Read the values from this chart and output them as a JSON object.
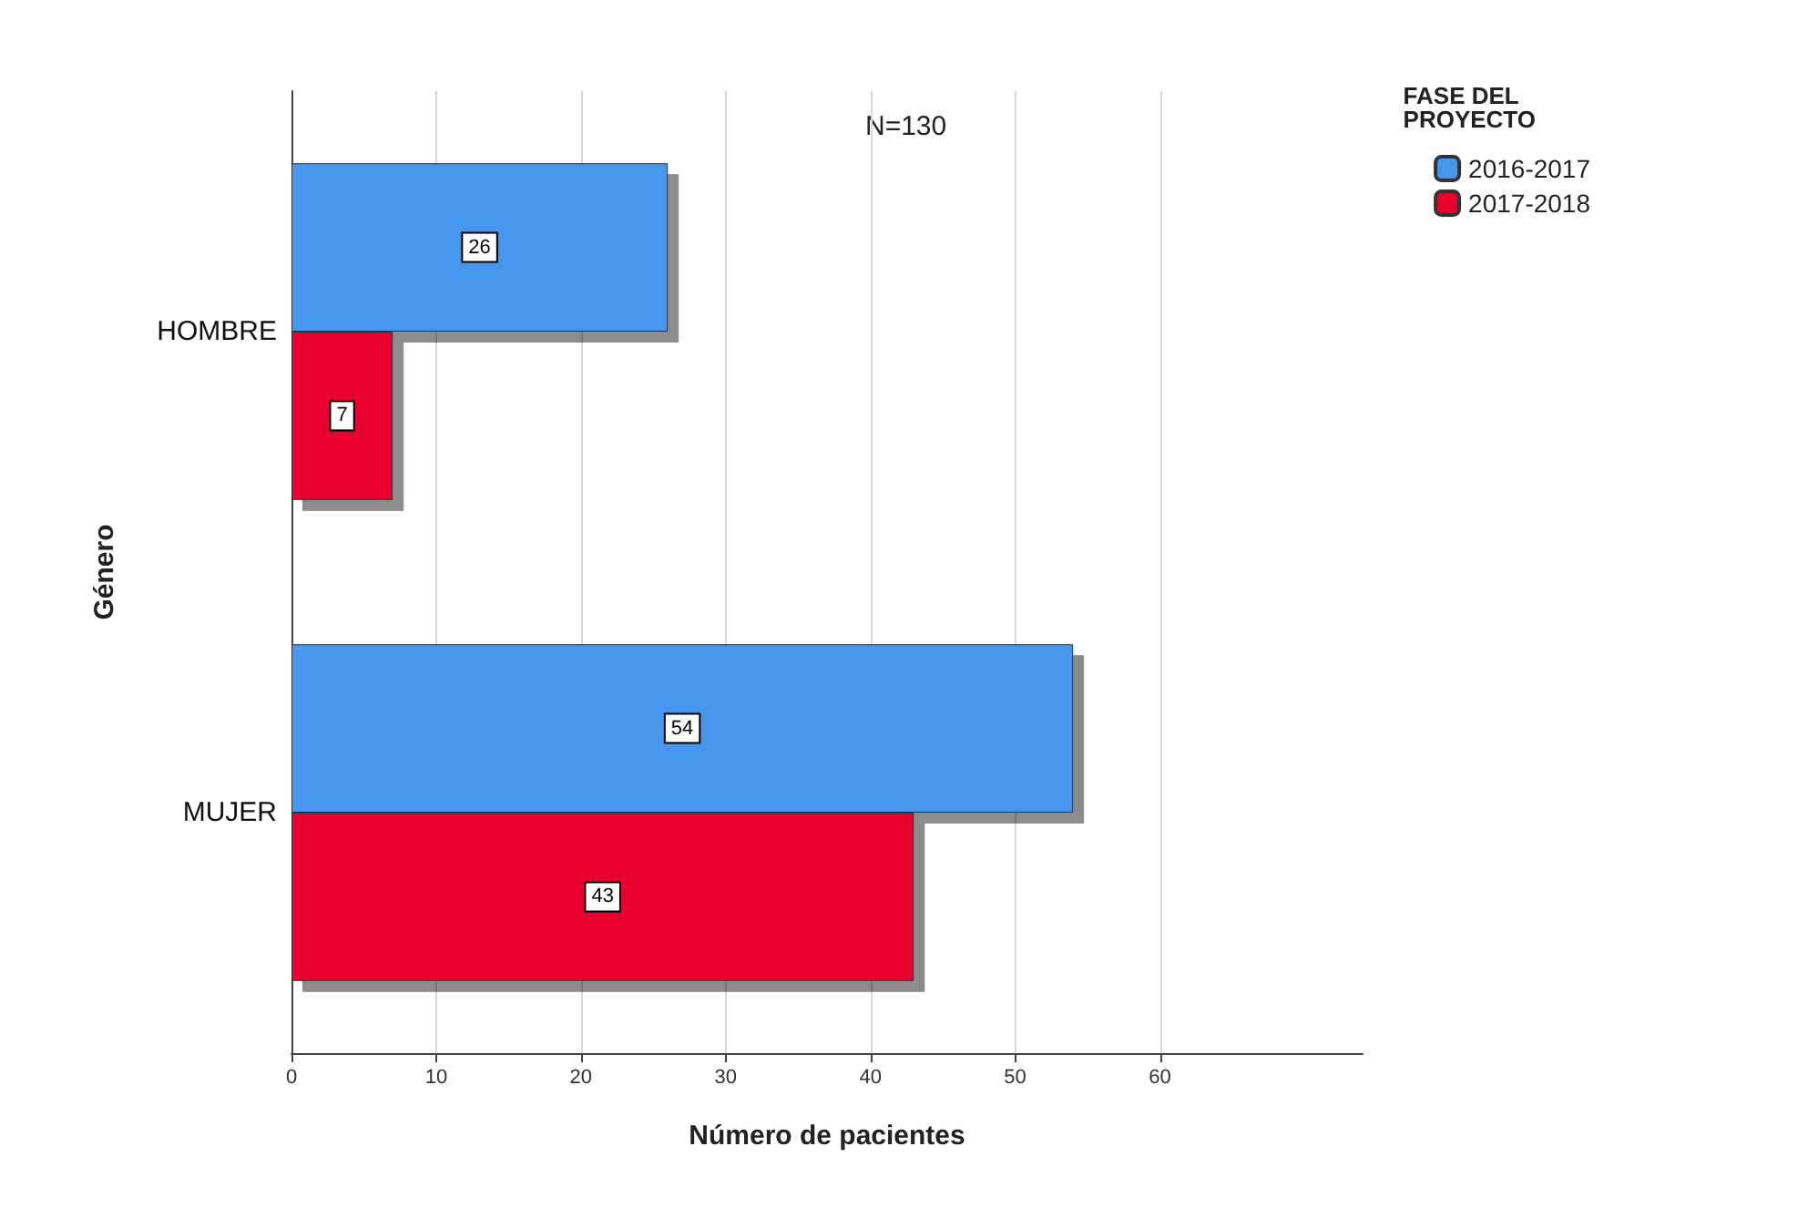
{
  "chart_data": {
    "type": "bar",
    "orientation": "horizontal",
    "xlabel": "Número de pacientes",
    "ylabel": "Género",
    "legend_title": "FASE DEL PROYECTO",
    "annotations": [
      "N=130"
    ],
    "categories": [
      "HOMBRE",
      "MUJER"
    ],
    "series": [
      {
        "name": "2016-2017",
        "color": "#4596ec",
        "values": [
          26,
          54
        ]
      },
      {
        "name": "2017-2018",
        "color": "#e8002d",
        "values": [
          7,
          43
        ]
      }
    ],
    "xlim": [
      0,
      74
    ],
    "xticks": [
      0,
      10,
      20,
      30,
      40,
      50,
      60
    ],
    "grid": "x",
    "legend": "top right",
    "data_labels": true
  }
}
